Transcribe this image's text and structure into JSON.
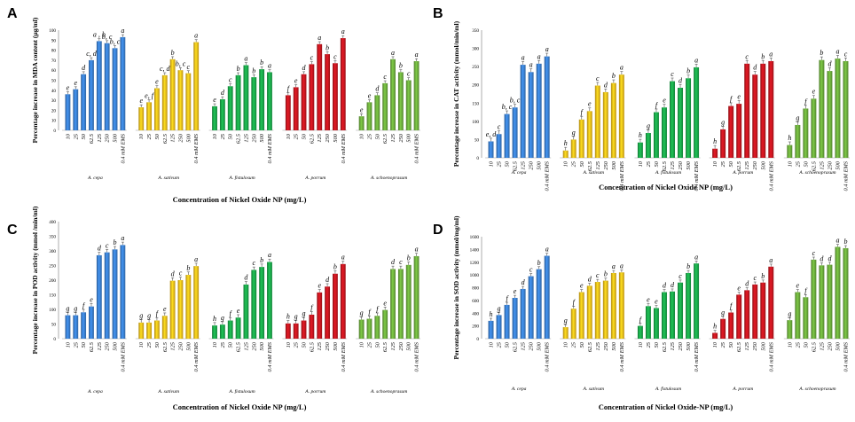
{
  "chart_data": [
    {
      "type": "bar",
      "panel": "A",
      "ylabel": "Percentage increase in MDA content (µg/ml)",
      "xlabel": "Concentration of Nickel Oxide NP (mg/L)",
      "ylim": [
        0,
        100
      ],
      "yticks": [
        "0",
        "10",
        "20",
        "30",
        "40",
        "50",
        "60",
        "70",
        "80",
        "90",
        "100"
      ],
      "ytick_values": [
        0,
        10,
        20,
        30,
        40,
        50,
        60,
        70,
        80,
        90,
        100
      ],
      "categories": [
        "10",
        "25",
        "50",
        "62.5",
        "125",
        "250",
        "500",
        "0.4 mM EMS"
      ],
      "series": [
        {
          "name": "A. cepa",
          "color": "#3a7fd0",
          "values": [
            36,
            41,
            56,
            70,
            89,
            87,
            82,
            93
          ],
          "letters": [
            "e",
            "e",
            "d",
            "c, d",
            "a , b",
            "b, c",
            "b, c",
            "a"
          ]
        },
        {
          "name": "A. sativum",
          "color": "#f3bd1a",
          "values": [
            23,
            28,
            42,
            55,
            71,
            60,
            57,
            88
          ],
          "letters": [
            "e",
            "e, f",
            "e",
            "c, d",
            "b",
            "b, c",
            "c",
            "a"
          ]
        },
        {
          "name": "A. fistulosum",
          "color": "#1aa84a",
          "values": [
            24,
            31,
            44,
            55,
            65,
            53,
            61,
            58
          ],
          "letters": [
            "e",
            "d",
            "c",
            "b",
            "a",
            "b",
            "b",
            "a"
          ]
        },
        {
          "name": "A. porrum",
          "color": "#c5161f",
          "values": [
            35,
            43,
            56,
            66,
            86,
            76,
            67,
            92
          ],
          "letters": [
            "f",
            "e",
            "d",
            "c",
            "a",
            "b",
            "c",
            "a"
          ]
        },
        {
          "name": "A. schoenoprasum",
          "color": "#6cac3c",
          "values": [
            14,
            28,
            35,
            47,
            71,
            58,
            50,
            69
          ],
          "letters": [
            "e",
            "e",
            "d",
            "c",
            "a",
            "b",
            "c",
            "a"
          ]
        }
      ]
    },
    {
      "type": "bar",
      "panel": "B",
      "ylabel": "Percentage increase in CAT activity (mmol/min/ml)",
      "xlabel": "Concentration of Nickel Oxide NP (mg/L)",
      "ylim": [
        0,
        350
      ],
      "yticks": [
        "0",
        "50",
        "100",
        "150",
        "200",
        "250",
        "300",
        "350"
      ],
      "ytick_values": [
        0,
        50,
        100,
        150,
        200,
        250,
        300,
        350
      ],
      "categories": [
        "10",
        "25",
        "50",
        "62.5",
        "125",
        "250",
        "500",
        "0.4 mM EMS"
      ],
      "series": [
        {
          "name": "A. cepa",
          "color": "#3a7fd0",
          "values": [
            45,
            65,
            120,
            138,
            255,
            235,
            258,
            278
          ],
          "letters": [
            "e, d",
            "c",
            "b, c",
            "b, c",
            "a",
            "a",
            "a",
            "a"
          ]
        },
        {
          "name": "A. sativum",
          "color": "#f3bd1a",
          "values": [
            20,
            50,
            105,
            128,
            198,
            180,
            205,
            228
          ],
          "letters": [
            "h",
            "g",
            "f",
            "e",
            "c",
            "d",
            "b",
            "a"
          ]
        },
        {
          "name": "A. fistulosum",
          "color": "#1aa84a",
          "values": [
            42,
            68,
            125,
            138,
            210,
            192,
            218,
            248
          ],
          "letters": [
            "h",
            "g",
            "f",
            "e",
            "c",
            "d",
            "b",
            "a"
          ]
        },
        {
          "name": "A. porrum",
          "color": "#c5161f",
          "values": [
            25,
            78,
            142,
            148,
            258,
            228,
            258,
            265
          ],
          "letters": [
            "h",
            "g",
            "f",
            "e",
            "c",
            "d",
            "b",
            "a"
          ]
        },
        {
          "name": "A. schoenoprasum",
          "color": "#6cac3c",
          "values": [
            35,
            90,
            135,
            162,
            268,
            238,
            272,
            265
          ],
          "letters": [
            "h",
            "g",
            "f",
            "e",
            "b",
            "d",
            "a",
            "c"
          ]
        }
      ]
    },
    {
      "type": "bar",
      "panel": "C",
      "ylabel": "Percentage increase in POD activity (mmol /min/ml)",
      "xlabel": "Concentration of Nickel Oxide NP (mg/L)",
      "ylim": [
        0,
        400
      ],
      "yticks": [
        "0",
        "50",
        "100",
        "150",
        "200",
        "250",
        "300",
        "350",
        "400"
      ],
      "ytick_values": [
        0,
        50,
        100,
        150,
        200,
        250,
        300,
        350,
        400
      ],
      "categories": [
        "10",
        "25",
        "50",
        "62.5",
        "125",
        "250",
        "500",
        "0.4 mM EMS"
      ],
      "series": [
        {
          "name": "A. cepa",
          "color": "#3a7fd0",
          "values": [
            80,
            80,
            90,
            110,
            285,
            295,
            305,
            320
          ],
          "letters": [
            "g",
            "g",
            "f",
            "e",
            "d",
            "c",
            "b",
            "a"
          ]
        },
        {
          "name": "A. sativum",
          "color": "#f3bd1a",
          "values": [
            55,
            55,
            62,
            78,
            198,
            200,
            218,
            248
          ],
          "letters": [
            "g",
            "g",
            "f",
            "e",
            "d",
            "c",
            "b",
            "a"
          ]
        },
        {
          "name": "A. fistulosum",
          "color": "#1aa84a",
          "values": [
            45,
            48,
            62,
            72,
            185,
            235,
            245,
            262
          ],
          "letters": [
            "h",
            "g",
            "f",
            "e",
            "d",
            "c",
            "b",
            "a"
          ]
        },
        {
          "name": "A. porrum",
          "color": "#c5161f",
          "values": [
            52,
            52,
            62,
            82,
            158,
            178,
            222,
            255
          ],
          "letters": [
            "h",
            "g",
            "g",
            "f",
            "e",
            "d",
            "b",
            "a"
          ]
        },
        {
          "name": "A. schoenoprasum",
          "color": "#6cac3c",
          "values": [
            65,
            68,
            78,
            98,
            238,
            238,
            252,
            282
          ],
          "letters": [
            "g",
            "f",
            "f",
            "e",
            "d",
            "c",
            "b",
            "a"
          ]
        }
      ]
    },
    {
      "type": "bar",
      "panel": "D",
      "ylabel": "Percentage increase in SOD activity (mmol/mg/ml)",
      "xlabel": "Concentration of Nickel Oxide-NP (mg/L)",
      "ylim": [
        0,
        1600
      ],
      "yticks": [
        "0",
        "200",
        "400",
        "600",
        "800",
        "1000",
        "1200",
        "1400",
        "1600"
      ],
      "ytick_values": [
        0,
        200,
        400,
        600,
        800,
        1000,
        1200,
        1400,
        1600
      ],
      "categories": [
        "10",
        "25",
        "50",
        "62.5",
        "125",
        "250",
        "500",
        "0.4 mM EMS"
      ],
      "series": [
        {
          "name": "A. cepa",
          "color": "#3a7fd0",
          "values": [
            280,
            370,
            530,
            640,
            780,
            980,
            1090,
            1300
          ],
          "letters": [
            "h",
            "g",
            "f",
            "e",
            "d",
            "c",
            "b",
            "a"
          ]
        },
        {
          "name": "A. sativum",
          "color": "#f3bd1a",
          "values": [
            180,
            470,
            730,
            830,
            890,
            910,
            1030,
            1040
          ],
          "letters": [
            "g",
            "f",
            "e",
            "d",
            "c",
            "b",
            "a",
            "a"
          ]
        },
        {
          "name": "A. fistulosum",
          "color": "#1aa84a",
          "values": [
            200,
            510,
            480,
            730,
            740,
            880,
            1030,
            1180
          ],
          "letters": [
            "f",
            "e",
            "e",
            "d",
            "d",
            "c",
            "b",
            "a"
          ]
        },
        {
          "name": "A. porrum",
          "color": "#c5161f",
          "values": [
            90,
            310,
            410,
            690,
            760,
            850,
            880,
            1130
          ],
          "letters": [
            "h",
            "g",
            "f",
            "e",
            "d",
            "c",
            "b",
            "a"
          ]
        },
        {
          "name": "A. schoenoprasum",
          "color": "#6cac3c",
          "values": [
            290,
            730,
            650,
            1240,
            1150,
            1160,
            1440,
            1420
          ],
          "letters": [
            "g",
            "e",
            "f",
            "c",
            "d",
            "d",
            "a",
            "b"
          ]
        }
      ]
    }
  ]
}
